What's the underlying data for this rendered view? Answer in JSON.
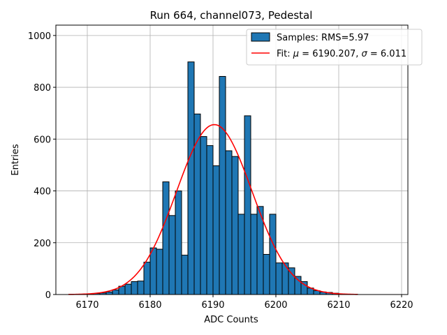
{
  "chart_data": {
    "type": "bar",
    "title": "Run 664, channel073, Pedestal",
    "xlabel": "ADC Counts",
    "ylabel": "Entries",
    "xlim": [
      6165,
      6221
    ],
    "ylim": [
      0,
      1040
    ],
    "grid": true,
    "legend_position": "top-right",
    "x_ticks": [
      6170,
      6180,
      6190,
      6200,
      6210,
      6220
    ],
    "y_ticks": [
      0,
      200,
      400,
      600,
      800,
      1000
    ],
    "histogram": {
      "name": "Samples: RMS=5.97",
      "color": "#1f77b4",
      "bin_width": 1,
      "bin_starts": [
        6167,
        6168,
        6169,
        6170,
        6171,
        6172,
        6173,
        6174,
        6175,
        6176,
        6177,
        6178,
        6179,
        6180,
        6181,
        6182,
        6183,
        6184,
        6185,
        6186,
        6187,
        6188,
        6189,
        6190,
        6191,
        6192,
        6193,
        6194,
        6195,
        6196,
        6197,
        6198,
        6199,
        6200,
        6201,
        6202,
        6203,
        6204,
        6205,
        6206,
        6207,
        6208,
        6209,
        6210,
        6211,
        6212
      ],
      "counts": [
        0,
        0,
        1,
        2,
        4,
        6,
        10,
        18,
        32,
        40,
        50,
        52,
        125,
        180,
        175,
        435,
        305,
        400,
        152,
        898,
        697,
        610,
        575,
        497,
        842,
        555,
        533,
        310,
        690,
        310,
        340,
        155,
        310,
        122,
        122,
        103,
        70,
        50,
        25,
        15,
        10,
        8,
        5,
        2,
        1,
        1
      ]
    },
    "fit": {
      "name": "Fit: μ = 6190.207, σ = 6.011",
      "legend_prefix": "Fit: ",
      "legend_mu_symbol": "μ",
      "legend_mu_value": " = 6190.207, ",
      "legend_sigma_symbol": "σ",
      "legend_sigma_value": " = 6.011",
      "color": "#ff0000",
      "mu": 6190.207,
      "sigma": 6.011,
      "amplitude": 656,
      "x_range": [
        6167,
        6213
      ]
    }
  }
}
